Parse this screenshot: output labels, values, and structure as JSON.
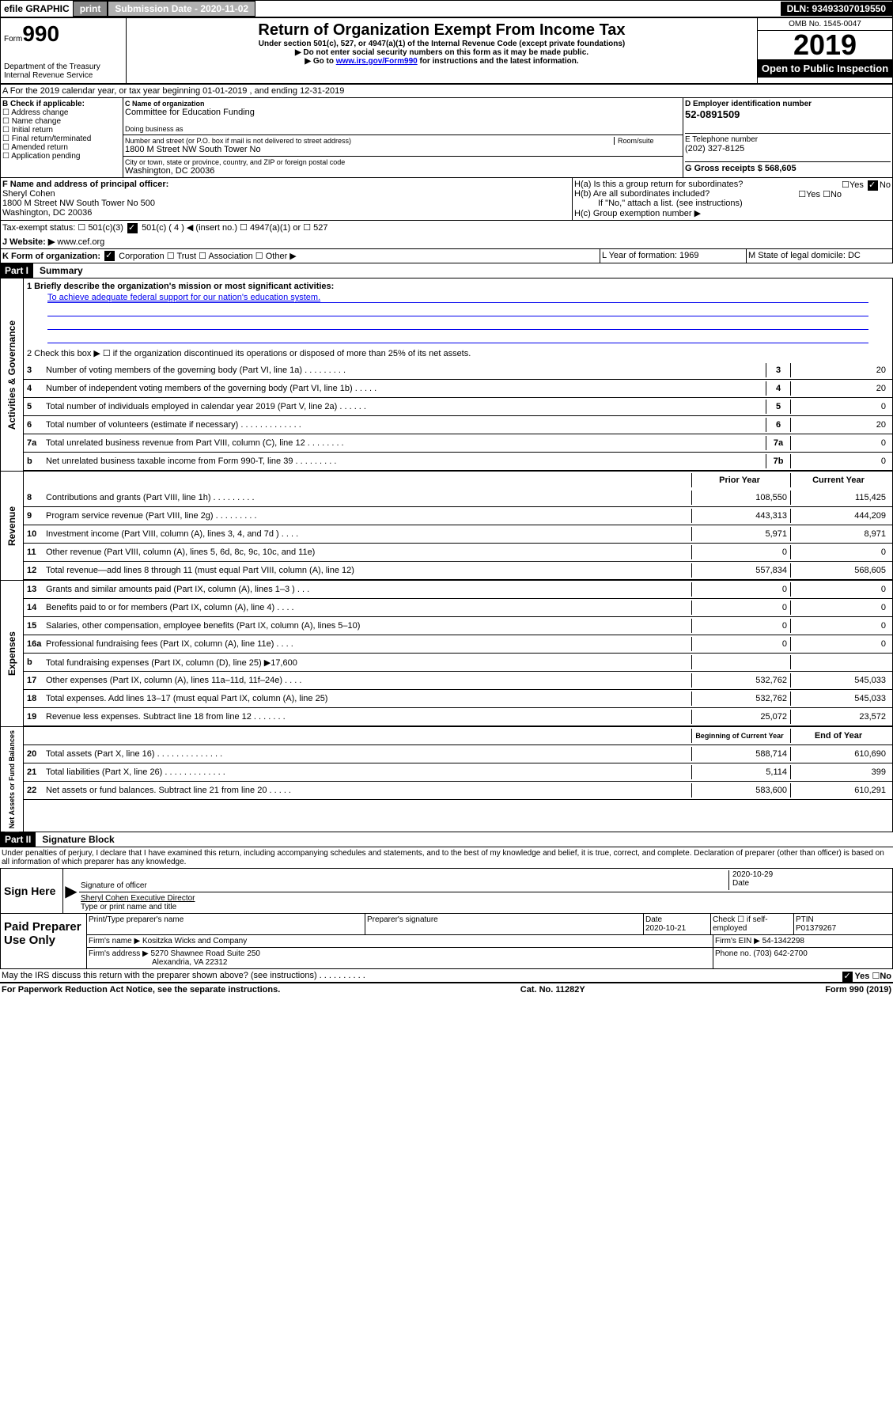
{
  "topBar": {
    "efile": "efile GRAPHIC",
    "print": "print",
    "subDateLabel": "Submission Date - 2020-11-02",
    "dln": "DLN: 93493307019550"
  },
  "header": {
    "formWord": "Form",
    "formNum": "990",
    "dept": "Department of the Treasury\nInternal Revenue Service",
    "title": "Return of Organization Exempt From Income Tax",
    "sub1": "Under section 501(c), 527, or 4947(a)(1) of the Internal Revenue Code (except private foundations)",
    "sub2": "▶ Do not enter social security numbers on this form as it may be made public.",
    "sub3a": "▶ Go to ",
    "sub3link": "www.irs.gov/Form990",
    "sub3b": " for instructions and the latest information.",
    "omb": "OMB No. 1545-0047",
    "year": "2019",
    "open": "Open to Public Inspection"
  },
  "sectionA": "A  For the 2019 calendar year, or tax year beginning 01-01-2019    , and ending 12-31-2019",
  "colB": {
    "hdr": "B Check if applicable:",
    "items": [
      "Address change",
      "Name change",
      "Initial return",
      "Final return/terminated",
      "Amended return",
      "Application pending"
    ]
  },
  "colC": {
    "nameLabel": "C Name of organization",
    "name": "Committee for Education Funding",
    "dbaLabel": "Doing business as",
    "addrLabel": "Number and street (or P.O. box if mail is not delivered to street address)",
    "roomLabel": "Room/suite",
    "addr": "1800 M Street NW South Tower No",
    "cityLabel": "City or town, state or province, country, and ZIP or foreign postal code",
    "city": "Washington, DC  20036"
  },
  "colD": {
    "einLabel": "D Employer identification number",
    "ein": "52-0891509",
    "phoneLabel": "E Telephone number",
    "phone": "(202) 327-8125",
    "grossLabel": "G Gross receipts $ 568,605"
  },
  "rowF": {
    "fLabel": "F  Name and address of principal officer:",
    "fName": "Sheryl Cohen",
    "fAddr": "1800 M Street NW South Tower No 500\nWashington, DC  20036",
    "haLabel": "H(a)  Is this a group return for subordinates?",
    "hbLabel": "H(b)  Are all subordinates included?",
    "hbNote": "If \"No,\" attach a list. (see instructions)",
    "hcLabel": "H(c)  Group exemption number ▶",
    "yes": "Yes",
    "no": "No"
  },
  "taxStatus": {
    "label": "Tax-exempt status:",
    "c3": "501(c)(3)",
    "c4": "501(c) ( 4 ) ◀ (insert no.)",
    "a1": "4947(a)(1) or",
    "s527": "527"
  },
  "website": {
    "label": "J    Website: ▶",
    "val": "www.cef.org"
  },
  "rowK": {
    "label": "K Form of organization:",
    "corp": "Corporation",
    "trust": "Trust",
    "assoc": "Association",
    "other": "Other ▶",
    "lLabel": "L Year of formation: 1969",
    "mLabel": "M State of legal domicile: DC"
  },
  "parts": {
    "p1": "Part I",
    "p1t": "Summary",
    "p2": "Part II",
    "p2t": "Signature Block"
  },
  "summary": {
    "q1": "1  Briefly describe the organization's mission or most significant activities:",
    "mission": "To achieve adequate federal support for our nation's education system.",
    "q2": "2   Check this box ▶ ☐  if the organization discontinued its operations or disposed of more than 25% of its net assets.",
    "lines": [
      {
        "n": "3",
        "t": "Number of voting members of the governing body (Part VI, line 1a)   .    .    .    .    .    .    .    .    .",
        "b": "3",
        "v": "20"
      },
      {
        "n": "4",
        "t": "Number of independent voting members of the governing body (Part VI, line 1b)   .    .    .    .    .",
        "b": "4",
        "v": "20"
      },
      {
        "n": "5",
        "t": "Total number of individuals employed in calendar year 2019 (Part V, line 2a)   .    .    .    .    .    .",
        "b": "5",
        "v": "0"
      },
      {
        "n": "6",
        "t": "Total number of volunteers (estimate if necessary)   .    .    .    .    .    .    .    .    .    .    .    .    .",
        "b": "6",
        "v": "20"
      },
      {
        "n": "7a",
        "t": "Total unrelated business revenue from Part VIII, column (C), line 12   .    .    .    .    .    .    .    .",
        "b": "7a",
        "v": "0"
      },
      {
        "n": " b",
        "t": "Net unrelated business taxable income from Form 990-T, line 39   .    .    .    .    .    .    .    .    .",
        "b": "7b",
        "v": "0"
      }
    ],
    "hdrPrior": "Prior Year",
    "hdrCurrent": "Current Year",
    "revenue": [
      {
        "n": "8",
        "t": "Contributions and grants (Part VIII, line 1h)   .    .    .    .    .    .    .    .    .",
        "p": "108,550",
        "c": "115,425"
      },
      {
        "n": "9",
        "t": "Program service revenue (Part VIII, line 2g)   .    .    .    .    .    .    .    .    .",
        "p": "443,313",
        "c": "444,209"
      },
      {
        "n": "10",
        "t": "Investment income (Part VIII, column (A), lines 3, 4, and 7d )   .    .    .    .",
        "p": "5,971",
        "c": "8,971"
      },
      {
        "n": "11",
        "t": "Other revenue (Part VIII, column (A), lines 5, 6d, 8c, 9c, 10c, and 11e)",
        "p": "0",
        "c": "0"
      },
      {
        "n": "12",
        "t": "Total revenue—add lines 8 through 11 (must equal Part VIII, column (A), line 12)",
        "p": "557,834",
        "c": "568,605"
      }
    ],
    "expenses": [
      {
        "n": "13",
        "t": "Grants and similar amounts paid (Part IX, column (A), lines 1–3 )   .    .    .",
        "p": "0",
        "c": "0"
      },
      {
        "n": "14",
        "t": "Benefits paid to or for members (Part IX, column (A), line 4)   .    .    .    .",
        "p": "0",
        "c": "0"
      },
      {
        "n": "15",
        "t": "Salaries, other compensation, employee benefits (Part IX, column (A), lines 5–10)",
        "p": "0",
        "c": "0"
      },
      {
        "n": "16a",
        "t": "Professional fundraising fees (Part IX, column (A), line 11e)   .    .    .    .",
        "p": "0",
        "c": "0"
      },
      {
        "n": "b",
        "t": "Total fundraising expenses (Part IX, column (D), line 25) ▶17,600",
        "p": "",
        "c": ""
      },
      {
        "n": "17",
        "t": "Other expenses (Part IX, column (A), lines 11a–11d, 11f–24e)   .    .    .    .",
        "p": "532,762",
        "c": "545,033"
      },
      {
        "n": "18",
        "t": "Total expenses. Add lines 13–17 (must equal Part IX, column (A), line 25)",
        "p": "532,762",
        "c": "545,033"
      },
      {
        "n": "19",
        "t": "Revenue less expenses. Subtract line 18 from line 12   .    .    .    .    .    .    .",
        "p": "25,072",
        "c": "23,572"
      }
    ],
    "hdrBeg": "Beginning of Current Year",
    "hdrEnd": "End of Year",
    "netassets": [
      {
        "n": "20",
        "t": "Total assets (Part X, line 16)   .    .    .    .    .    .    .    .    .    .    .    .    .    .",
        "p": "588,714",
        "c": "610,690"
      },
      {
        "n": "21",
        "t": "Total liabilities (Part X, line 26)   .    .    .    .    .    .    .    .    .    .    .    .    .",
        "p": "5,114",
        "c": "399"
      },
      {
        "n": "22",
        "t": "Net assets or fund balances. Subtract line 21 from line 20   .    .    .    .    .",
        "p": "583,600",
        "c": "610,291"
      }
    ]
  },
  "vlabels": {
    "gov": "Activities & Governance",
    "rev": "Revenue",
    "exp": "Expenses",
    "net": "Net Assets or Fund Balances"
  },
  "perjury": "Under penalties of perjury, I declare that I have examined this return, including accompanying schedules and statements, and to the best of my knowledge and belief, it is true, correct, and complete. Declaration of preparer (other than officer) is based on all information of which preparer has any knowledge.",
  "sign": {
    "here": "Sign Here",
    "sigLabel": "Signature of officer",
    "date": "2020-10-29",
    "dateLabel": "Date",
    "name": "Sheryl Cohen  Executive Director",
    "nameLabel": "Type or print name and title"
  },
  "prep": {
    "label": "Paid Preparer Use Only",
    "h1": "Print/Type preparer's name",
    "h2": "Preparer's signature",
    "h3": "Date",
    "h3v": "2020-10-21",
    "h4": "Check ☐ if self-employed",
    "h5": "PTIN",
    "h5v": "P01379267",
    "firmLabel": "Firm's name    ▶",
    "firm": "Kositzka Wicks and Company",
    "einLabel": "Firm's EIN ▶",
    "ein": "54-1342298",
    "addrLabel": "Firm's address ▶",
    "addr": "5270 Shawnee Road Suite 250",
    "addr2": "Alexandria, VA  22312",
    "phoneLabel": "Phone no.",
    "phone": "(703) 642-2700"
  },
  "discuss": "May the IRS discuss this return with the preparer shown above? (see instructions)    .    .    .    .    .    .    .    .    .    .",
  "footer": {
    "l": "For Paperwork Reduction Act Notice, see the separate instructions.",
    "m": "Cat. No. 11282Y",
    "r": "Form 990 (2019)"
  }
}
